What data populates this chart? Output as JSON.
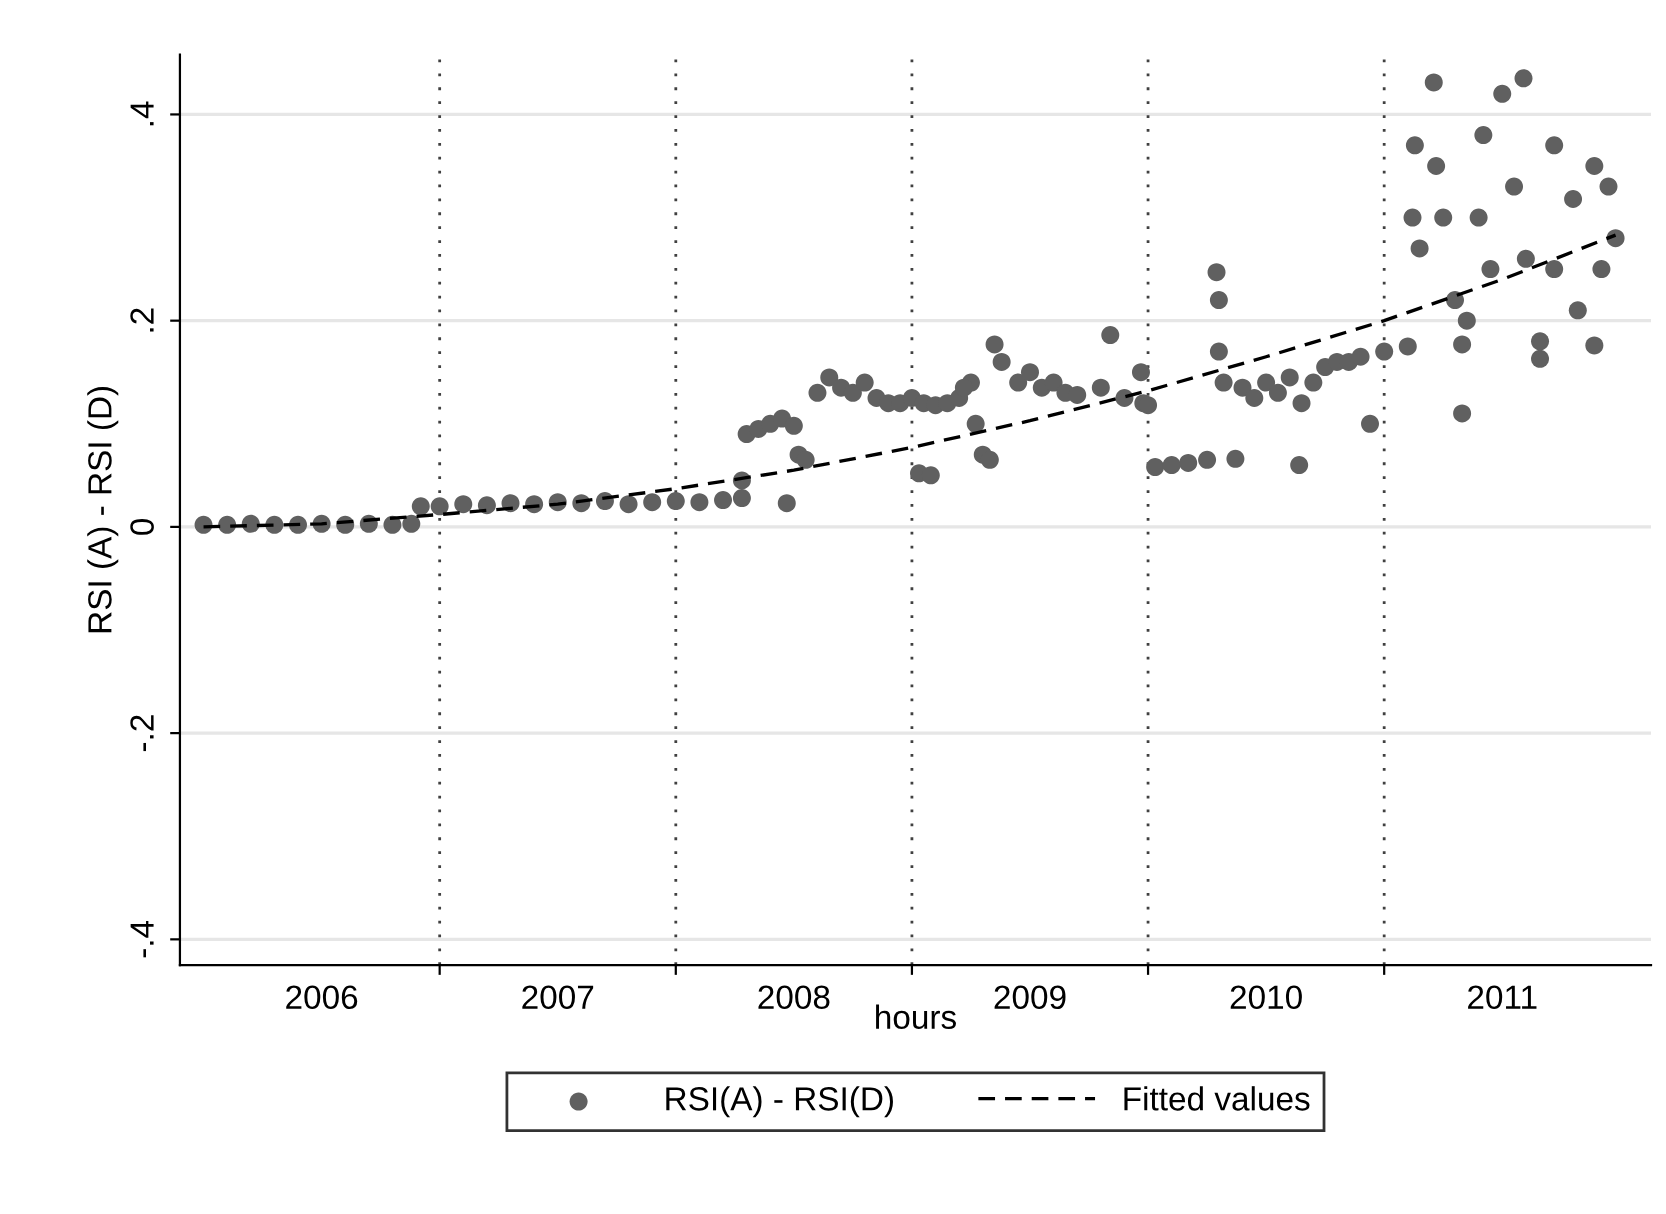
{
  "chart_data": {
    "type": "scatter",
    "xlabel": "hours",
    "ylabel": "RSI (A) - RSI (D)",
    "xlim": [
      2005.9,
      2012.13
    ],
    "ylim": [
      -0.425,
      0.458
    ],
    "xticks": [
      {
        "value": 2006.5,
        "label": "2006"
      },
      {
        "value": 2007,
        "label": null
      },
      {
        "value": 2007.5,
        "label": "2007"
      },
      {
        "value": 2008,
        "label": null
      },
      {
        "value": 2008.5,
        "label": "2008"
      },
      {
        "value": 2009,
        "label": null
      },
      {
        "value": 2009.5,
        "label": "2009"
      },
      {
        "value": 2010,
        "label": null
      },
      {
        "value": 2010.5,
        "label": "2010"
      },
      {
        "value": 2011,
        "label": null
      },
      {
        "value": 2011.5,
        "label": "2011"
      }
    ],
    "yticks": [
      {
        "value": -0.4,
        "label": "-.4"
      },
      {
        "value": -0.2,
        "label": "-.2"
      },
      0,
      {
        "value": 0.2,
        "label": ".2"
      },
      {
        "value": 0.4,
        "label": ".4"
      }
    ],
    "grid": "y",
    "legend": "bottom",
    "ref_lines": [
      {
        "axis": "x",
        "value": 2007,
        "color": "#404040",
        "line_style": "dotted"
      },
      {
        "axis": "x",
        "value": 2008,
        "color": "#404040",
        "line_style": "dotted"
      },
      {
        "axis": "x",
        "value": 2009,
        "color": "#404040",
        "line_style": "dotted"
      },
      {
        "axis": "x",
        "value": 2010,
        "color": "#404040",
        "line_style": "dotted"
      },
      {
        "axis": "x",
        "value": 2011,
        "color": "#404040",
        "line_style": "dotted"
      }
    ],
    "series": [
      {
        "name": "RSI(A) - RSI(D)",
        "color": "#606060",
        "marker": "circle",
        "x": [
          2006.0,
          2006.1,
          2006.2,
          2006.3,
          2006.4,
          2006.5,
          2006.6,
          2006.7,
          2006.8,
          2006.88,
          2006.92,
          2007.0,
          2007.1,
          2007.2,
          2007.3,
          2007.4,
          2007.5,
          2007.6,
          2007.7,
          2007.8,
          2007.9,
          2008.0,
          2008.1,
          2008.2,
          2008.28,
          2008.28,
          2008.3,
          2008.35,
          2008.4,
          2008.45,
          2008.5,
          2008.52,
          2008.55,
          2008.47,
          2008.6,
          2008.65,
          2008.7,
          2008.75,
          2008.8,
          2008.85,
          2008.9,
          2008.95,
          2009.0,
          2009.05,
          2009.1,
          2009.15,
          2009.2,
          2009.25,
          2009.03,
          2009.08,
          2009.22,
          2009.3,
          2009.33,
          2009.27,
          2009.35,
          2009.38,
          2009.45,
          2009.5,
          2009.55,
          2009.6,
          2009.65,
          2009.7,
          2009.8,
          2009.84,
          2009.9,
          2009.97,
          2009.98,
          2010.0,
          2010.03,
          2010.1,
          2010.17,
          2010.25,
          2010.29,
          2010.3,
          2010.3,
          2010.37,
          2010.32,
          2010.4,
          2010.45,
          2010.5,
          2010.55,
          2010.6,
          2010.65,
          2010.64,
          2010.7,
          2010.75,
          2010.8,
          2010.85,
          2010.9,
          2010.94,
          2011.0,
          2011.1,
          2011.12,
          2011.13,
          2011.15,
          2011.21,
          2011.22,
          2011.25,
          2011.3,
          2011.33,
          2011.33,
          2011.35,
          2011.4,
          2011.42,
          2011.45,
          2011.5,
          2011.55,
          2011.59,
          2011.6,
          2011.66,
          2011.66,
          2011.72,
          2011.72,
          2011.8,
          2011.82,
          2011.89,
          2011.89,
          2011.92,
          2011.95,
          2011.98
        ],
        "values": [
          0.002,
          0.002,
          0.003,
          0.002,
          0.002,
          0.003,
          0.002,
          0.003,
          0.002,
          0.003,
          0.02,
          0.02,
          0.022,
          0.021,
          0.023,
          0.022,
          0.024,
          0.023,
          0.025,
          0.022,
          0.024,
          0.025,
          0.024,
          0.026,
          0.028,
          0.045,
          0.09,
          0.095,
          0.1,
          0.105,
          0.098,
          0.07,
          0.065,
          0.023,
          0.13,
          0.145,
          0.135,
          0.13,
          0.14,
          0.125,
          0.12,
          0.12,
          0.125,
          0.12,
          0.118,
          0.12,
          0.125,
          0.14,
          0.052,
          0.05,
          0.135,
          0.07,
          0.065,
          0.1,
          0.177,
          0.16,
          0.14,
          0.15,
          0.135,
          0.14,
          0.13,
          0.128,
          0.135,
          0.186,
          0.125,
          0.15,
          0.12,
          0.118,
          0.058,
          0.06,
          0.062,
          0.065,
          0.247,
          0.22,
          0.17,
          0.066,
          0.14,
          0.135,
          0.125,
          0.14,
          0.13,
          0.145,
          0.12,
          0.06,
          0.14,
          0.155,
          0.16,
          0.16,
          0.165,
          0.1,
          0.17,
          0.175,
          0.3,
          0.37,
          0.27,
          0.431,
          0.35,
          0.3,
          0.22,
          0.177,
          0.11,
          0.2,
          0.3,
          0.38,
          0.25,
          0.42,
          0.33,
          0.435,
          0.26,
          0.18,
          0.163,
          0.37,
          0.25,
          0.318,
          0.21,
          0.35,
          0.176,
          0.25,
          0.33,
          0.28
        ]
      },
      {
        "name": "Fitted values",
        "type": "line",
        "color": "#000000",
        "line_style": "dashed",
        "marker": "none",
        "x": [
          2006.0,
          2006.5,
          2007.0,
          2007.5,
          2008.0,
          2008.5,
          2009.0,
          2009.5,
          2010.0,
          2010.5,
          2011.0,
          2011.5,
          2011.98
        ],
        "values": [
          0.0,
          0.003,
          0.012,
          0.022,
          0.037,
          0.055,
          0.077,
          0.103,
          0.132,
          0.165,
          0.2,
          0.24,
          0.283
        ]
      }
    ]
  }
}
